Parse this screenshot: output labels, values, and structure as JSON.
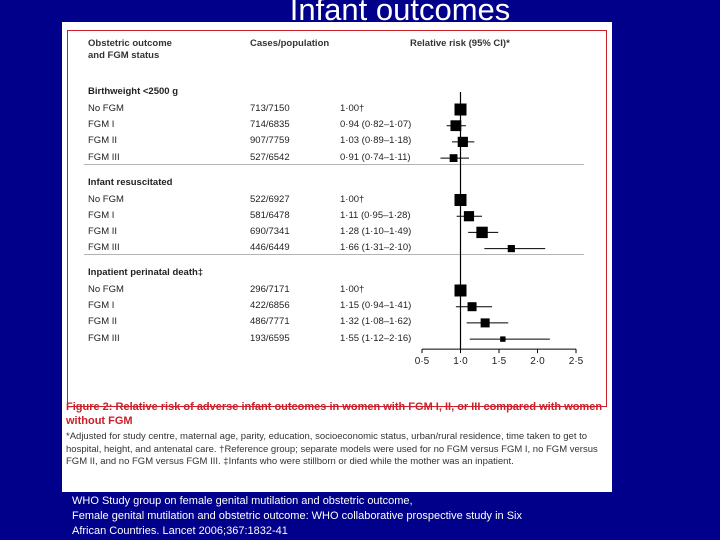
{
  "slide": {
    "title": "Infant outcomes",
    "source_lines": [
      "WHO Study group on female genital mutilation and obstetric outcome,",
      "Female genital mutilation and obstetric outcome: WHO collaborative prospective study in Six",
      "African Countries. Lancet 2006;367:1832-41"
    ]
  },
  "figure": {
    "col_outcome_line1": "Obstetric outcome",
    "col_outcome_line2": "and FGM status",
    "col_cases": "Cases/population",
    "col_rr": "Relative risk (95% CI)*",
    "caption_title": "Figure 2: Relative risk of adverse infant outcomes in women with FGM I, II, or III compared with women without FGM",
    "caption_footnote": "*Adjusted for study centre, maternal age, parity, education, socioeconomic status, urban/rural residence, time taken to get to hospital, height, and antenatal care. †Reference group; separate models were used for no FGM versus FGM I, no FGM versus FGM II, and no FGM versus FGM III. ‡Infants who were stillborn or died while the mother was an inpatient."
  },
  "colors": {
    "background": "#00008b",
    "frame": "#c9202a",
    "marker": "#000000"
  },
  "chart_data": {
    "type": "scatter",
    "subtype": "forest-plot",
    "xlim": [
      0.5,
      2.5
    ],
    "x_ticks": [
      0.5,
      1.0,
      1.5,
      2.0,
      2.5
    ],
    "x_tick_labels": [
      "0·5",
      "1·0",
      "1·5",
      "2·0",
      "2·5"
    ],
    "reference_line": 1.0,
    "groups": [
      {
        "name": "Birthweight <2500 g",
        "rows": [
          {
            "label": "No FGM",
            "cases": "713/7150",
            "rr_text": "1·00†",
            "rr": 1.0,
            "lo": null,
            "hi": null,
            "size": 1.0
          },
          {
            "label": "FGM I",
            "cases": "714/6835",
            "rr_text": "0·94 (0·82–1·07)",
            "rr": 0.94,
            "lo": 0.82,
            "hi": 1.07,
            "size": 0.9
          },
          {
            "label": "FGM II",
            "cases": "907/7759",
            "rr_text": "1·03 (0·89–1·18)",
            "rr": 1.03,
            "lo": 0.89,
            "hi": 1.18,
            "size": 0.85
          },
          {
            "label": "FGM III",
            "cases": "527/6542",
            "rr_text": "0·91 (0·74–1·11)",
            "rr": 0.91,
            "lo": 0.74,
            "hi": 1.11,
            "size": 0.65
          }
        ]
      },
      {
        "name": "Infant resuscitated",
        "rows": [
          {
            "label": "No FGM",
            "cases": "522/6927",
            "rr_text": "1·00†",
            "rr": 1.0,
            "lo": null,
            "hi": null,
            "size": 1.0
          },
          {
            "label": "FGM I",
            "cases": "581/6478",
            "rr_text": "1·11 (0·95–1·28)",
            "rr": 1.11,
            "lo": 0.95,
            "hi": 1.28,
            "size": 0.85
          },
          {
            "label": "FGM II",
            "cases": "690/7341",
            "rr_text": "1·28 (1·10–1·49)",
            "rr": 1.28,
            "lo": 1.1,
            "hi": 1.49,
            "size": 0.95
          },
          {
            "label": "FGM III",
            "cases": "446/6449",
            "rr_text": "1·66 (1·31–2·10)",
            "rr": 1.66,
            "lo": 1.31,
            "hi": 2.1,
            "size": 0.6
          }
        ]
      },
      {
        "name": "Inpatient perinatal death‡",
        "rows": [
          {
            "label": "No FGM",
            "cases": "296/7171",
            "rr_text": "1·00†",
            "rr": 1.0,
            "lo": null,
            "hi": null,
            "size": 1.0
          },
          {
            "label": "FGM I",
            "cases": "422/6856",
            "rr_text": "1·15 (0·94–1·41)",
            "rr": 1.15,
            "lo": 0.94,
            "hi": 1.41,
            "size": 0.75
          },
          {
            "label": "FGM II",
            "cases": "486/7771",
            "rr_text": "1·32 (1·08–1·62)",
            "rr": 1.32,
            "lo": 1.08,
            "hi": 1.62,
            "size": 0.75
          },
          {
            "label": "FGM III",
            "cases": "193/6595",
            "rr_text": "1·55 (1·12–2·16)",
            "rr": 1.55,
            "lo": 1.12,
            "hi": 2.16,
            "size": 0.45
          }
        ]
      }
    ]
  }
}
